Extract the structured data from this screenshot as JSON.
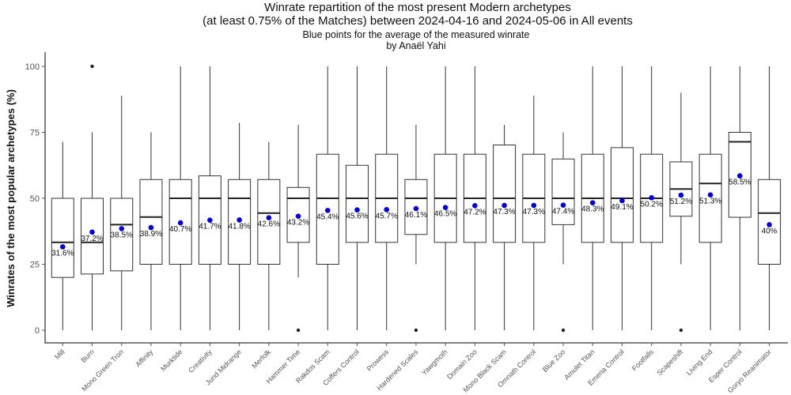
{
  "chart_data": {
    "type": "boxplot",
    "title": [
      "Winrate repartition of the most present Modern archetypes",
      "(at least 0.75% of the Matches) between 2024-04-16 and 2024-05-06 in All events"
    ],
    "subtitle": [
      "Blue points for the average of the measured winrate",
      "by Anaël Yahi"
    ],
    "xlabel": "",
    "ylabel": "Winrates of the most popular archetypes (%)",
    "ylim": [
      0,
      100
    ],
    "yticks": [
      "0",
      "25",
      "50",
      "75",
      "100"
    ],
    "grid": false,
    "colors": {
      "box": "#333333",
      "median": "#222222",
      "mean": "#0000e0",
      "axis": "#555555"
    },
    "categories": [
      "Mill",
      "Burn",
      "Mono Green Tron",
      "Affinity",
      "Murktide",
      "Creativity",
      "Jund Midrange",
      "Merfolk",
      "Hammer Time",
      "Rakdos Scam",
      "Coffers Control",
      "Prowess",
      "Hardened Scales",
      "Yawgmoth",
      "Domain Zoo",
      "Mono Black Scam",
      "Omnath Control",
      "Blue Zoo",
      "Amulet Titan",
      "Emeria Control",
      "Footfalls",
      "Scapeshift",
      "Living End",
      "Esper Control",
      "Goryo Reanimator"
    ],
    "whisker_low": [
      0,
      0,
      0,
      0,
      0,
      0,
      0,
      0,
      20,
      0,
      0,
      0,
      25,
      0,
      0,
      0,
      0,
      25,
      0,
      0,
      0,
      25,
      0,
      0,
      0
    ],
    "q1": [
      20,
      21.3,
      22.5,
      25,
      25,
      25,
      25,
      25,
      33.3,
      25,
      33.3,
      33.3,
      36.3,
      33.3,
      33.3,
      33.3,
      33.3,
      40,
      33.3,
      33.3,
      33.3,
      43.2,
      33.3,
      42.8,
      25
    ],
    "median": [
      33.3,
      33.3,
      40,
      42.9,
      50,
      50,
      50,
      44.4,
      50,
      50,
      50,
      50,
      50,
      50,
      50,
      50,
      50,
      50,
      50,
      50,
      50,
      53.5,
      55.6,
      71.4,
      44.4
    ],
    "q3": [
      50,
      50,
      50,
      57.1,
      57.1,
      58.5,
      57.1,
      57.1,
      54.1,
      66.7,
      62.5,
      66.7,
      57.1,
      66.7,
      66.7,
      70.2,
      66.7,
      64.9,
      66.7,
      69.2,
      66.7,
      63.8,
      66.7,
      75,
      57.1
    ],
    "whisker_high": [
      71.4,
      75,
      88.9,
      75,
      100,
      100,
      78.6,
      71.4,
      77.8,
      100,
      100,
      100,
      77.8,
      100,
      100,
      77.8,
      88.9,
      75,
      100,
      100,
      100,
      90,
      100,
      100,
      100
    ],
    "outliers": [
      [],
      [
        100
      ],
      [],
      [],
      [],
      [],
      [],
      [],
      [
        0
      ],
      [],
      [],
      [],
      [
        0
      ],
      [],
      [],
      [],
      [],
      [
        0
      ],
      [],
      [],
      [],
      [
        0
      ],
      [],
      [],
      []
    ],
    "mean": [
      31.6,
      37.2,
      38.5,
      38.9,
      40.7,
      41.7,
      41.8,
      42.6,
      43.2,
      45.4,
      45.6,
      45.7,
      46.1,
      46.5,
      47.2,
      47.3,
      47.3,
      47.4,
      48.3,
      49.1,
      50.2,
      51.2,
      51.3,
      58.5,
      40
    ],
    "mean_labels": [
      "31.6%",
      "37.2%",
      "38.5%",
      "38.9%",
      "40.7%",
      "41.7%",
      "41.8%",
      "42.6%",
      "43.2%",
      "45.4%",
      "45.6%",
      "45.7%",
      "46.1%",
      "46.5%",
      "47.2%",
      "47.3%",
      "47.3%",
      "47.4%",
      "48.3%",
      "49.1%",
      "50.2%",
      "51.2%",
      "51.3%",
      "58.5%",
      "40%"
    ]
  }
}
